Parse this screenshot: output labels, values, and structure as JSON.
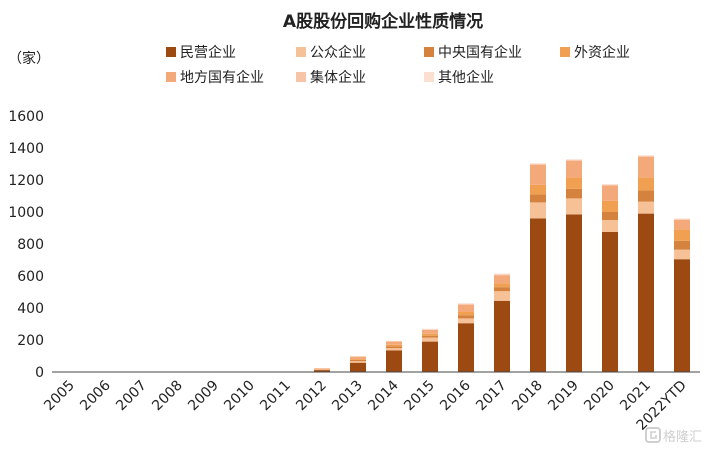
{
  "chart_data": {
    "type": "bar",
    "stacked": true,
    "title": "A股股份回购企业性质情况",
    "ylabel": "（家）",
    "ylim": [
      0,
      1600
    ],
    "yticks": [
      0,
      200,
      400,
      600,
      800,
      1000,
      1200,
      1400,
      1600
    ],
    "grid": false,
    "legend_position": "top",
    "categories": [
      "2005",
      "2006",
      "2007",
      "2008",
      "2009",
      "2010",
      "2011",
      "2012",
      "2013",
      "2014",
      "2015",
      "2016",
      "2017",
      "2018",
      "2019",
      "2020",
      "2021",
      "2022YTD"
    ],
    "series": [
      {
        "name": "民营企业",
        "color": "#9c4a12",
        "values": [
          0,
          0,
          0,
          0,
          0,
          0,
          0,
          12,
          58,
          135,
          190,
          305,
          445,
          960,
          985,
          875,
          990,
          705
        ]
      },
      {
        "name": "公众企业",
        "color": "#f6c196",
        "values": [
          0,
          0,
          0,
          0,
          0,
          0,
          0,
          3,
          10,
          15,
          25,
          30,
          60,
          100,
          100,
          75,
          75,
          60
        ]
      },
      {
        "name": "中央国有企业",
        "color": "#d4823e",
        "values": [
          0,
          0,
          0,
          0,
          0,
          0,
          0,
          2,
          8,
          10,
          12,
          20,
          25,
          50,
          60,
          50,
          70,
          55
        ]
      },
      {
        "name": "外资企业",
        "color": "#f0a050",
        "values": [
          0,
          0,
          0,
          0,
          0,
          0,
          0,
          2,
          5,
          10,
          12,
          20,
          25,
          60,
          70,
          70,
          80,
          70
        ]
      },
      {
        "name": "地方国有企业",
        "color": "#f4a97a",
        "values": [
          0,
          0,
          0,
          0,
          0,
          0,
          0,
          4,
          15,
          20,
          25,
          45,
          50,
          125,
          105,
          95,
          130,
          60
        ]
      },
      {
        "name": "集体企业",
        "color": "#f8c4a8",
        "values": [
          0,
          0,
          0,
          0,
          0,
          0,
          0,
          1,
          2,
          3,
          3,
          5,
          5,
          5,
          5,
          5,
          5,
          5
        ]
      },
      {
        "name": "其他企业",
        "color": "#fbe0d2",
        "values": [
          0,
          0,
          0,
          0,
          0,
          0,
          0,
          1,
          2,
          2,
          3,
          5,
          5,
          5,
          5,
          5,
          5,
          5
        ]
      }
    ]
  },
  "watermark": {
    "text": "格隆汇",
    "icon": "gelonghui-logo-icon"
  }
}
